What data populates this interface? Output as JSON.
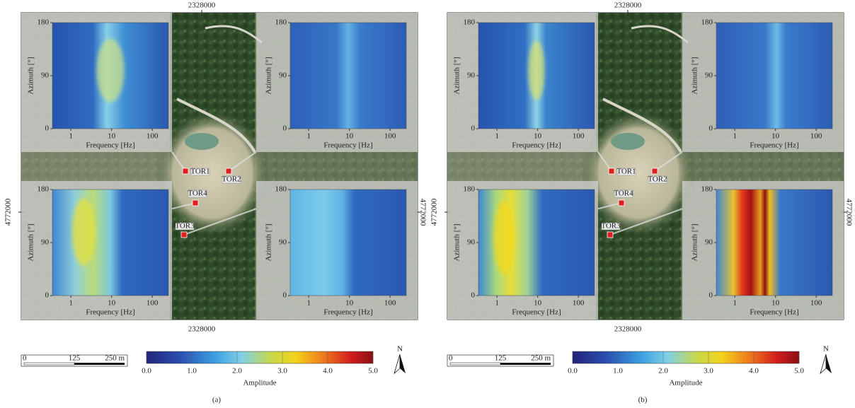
{
  "panels": [
    {
      "label": "(a)",
      "easting": "2328000",
      "northing": "4772000",
      "stations": [
        "TOR1",
        "TOR2",
        "TOR3",
        "TOR4"
      ]
    },
    {
      "label": "(b)",
      "easting": "2328000",
      "northing": "4772000",
      "stations": [
        "TOR1",
        "TOR2",
        "TOR3",
        "TOR4"
      ]
    }
  ],
  "inset_axes": {
    "x_label": "Frequency [Hz]",
    "y_label": "Azimuth [°]",
    "xscale": "log",
    "xlim": [
      0.35,
      250
    ],
    "xticks": [
      1,
      10,
      100
    ],
    "ylim": [
      0,
      180
    ],
    "yticks": [
      0,
      90,
      180
    ]
  },
  "colorbar": {
    "label": "Amplitude",
    "clim": [
      0,
      5
    ],
    "ticks": [
      {
        "value": 0,
        "label": "0.0"
      },
      {
        "value": 1,
        "label": "1.0"
      },
      {
        "value": 2,
        "label": "2.0"
      },
      {
        "value": 3,
        "label": "3.0"
      },
      {
        "value": 4,
        "label": "4.0"
      },
      {
        "value": 5,
        "label": "5.0"
      }
    ]
  },
  "scalebar": {
    "range": [
      0,
      250
    ],
    "ticks": [
      0,
      125,
      {
        "value": 250,
        "label": "250 m"
      }
    ]
  },
  "north": "N"
}
